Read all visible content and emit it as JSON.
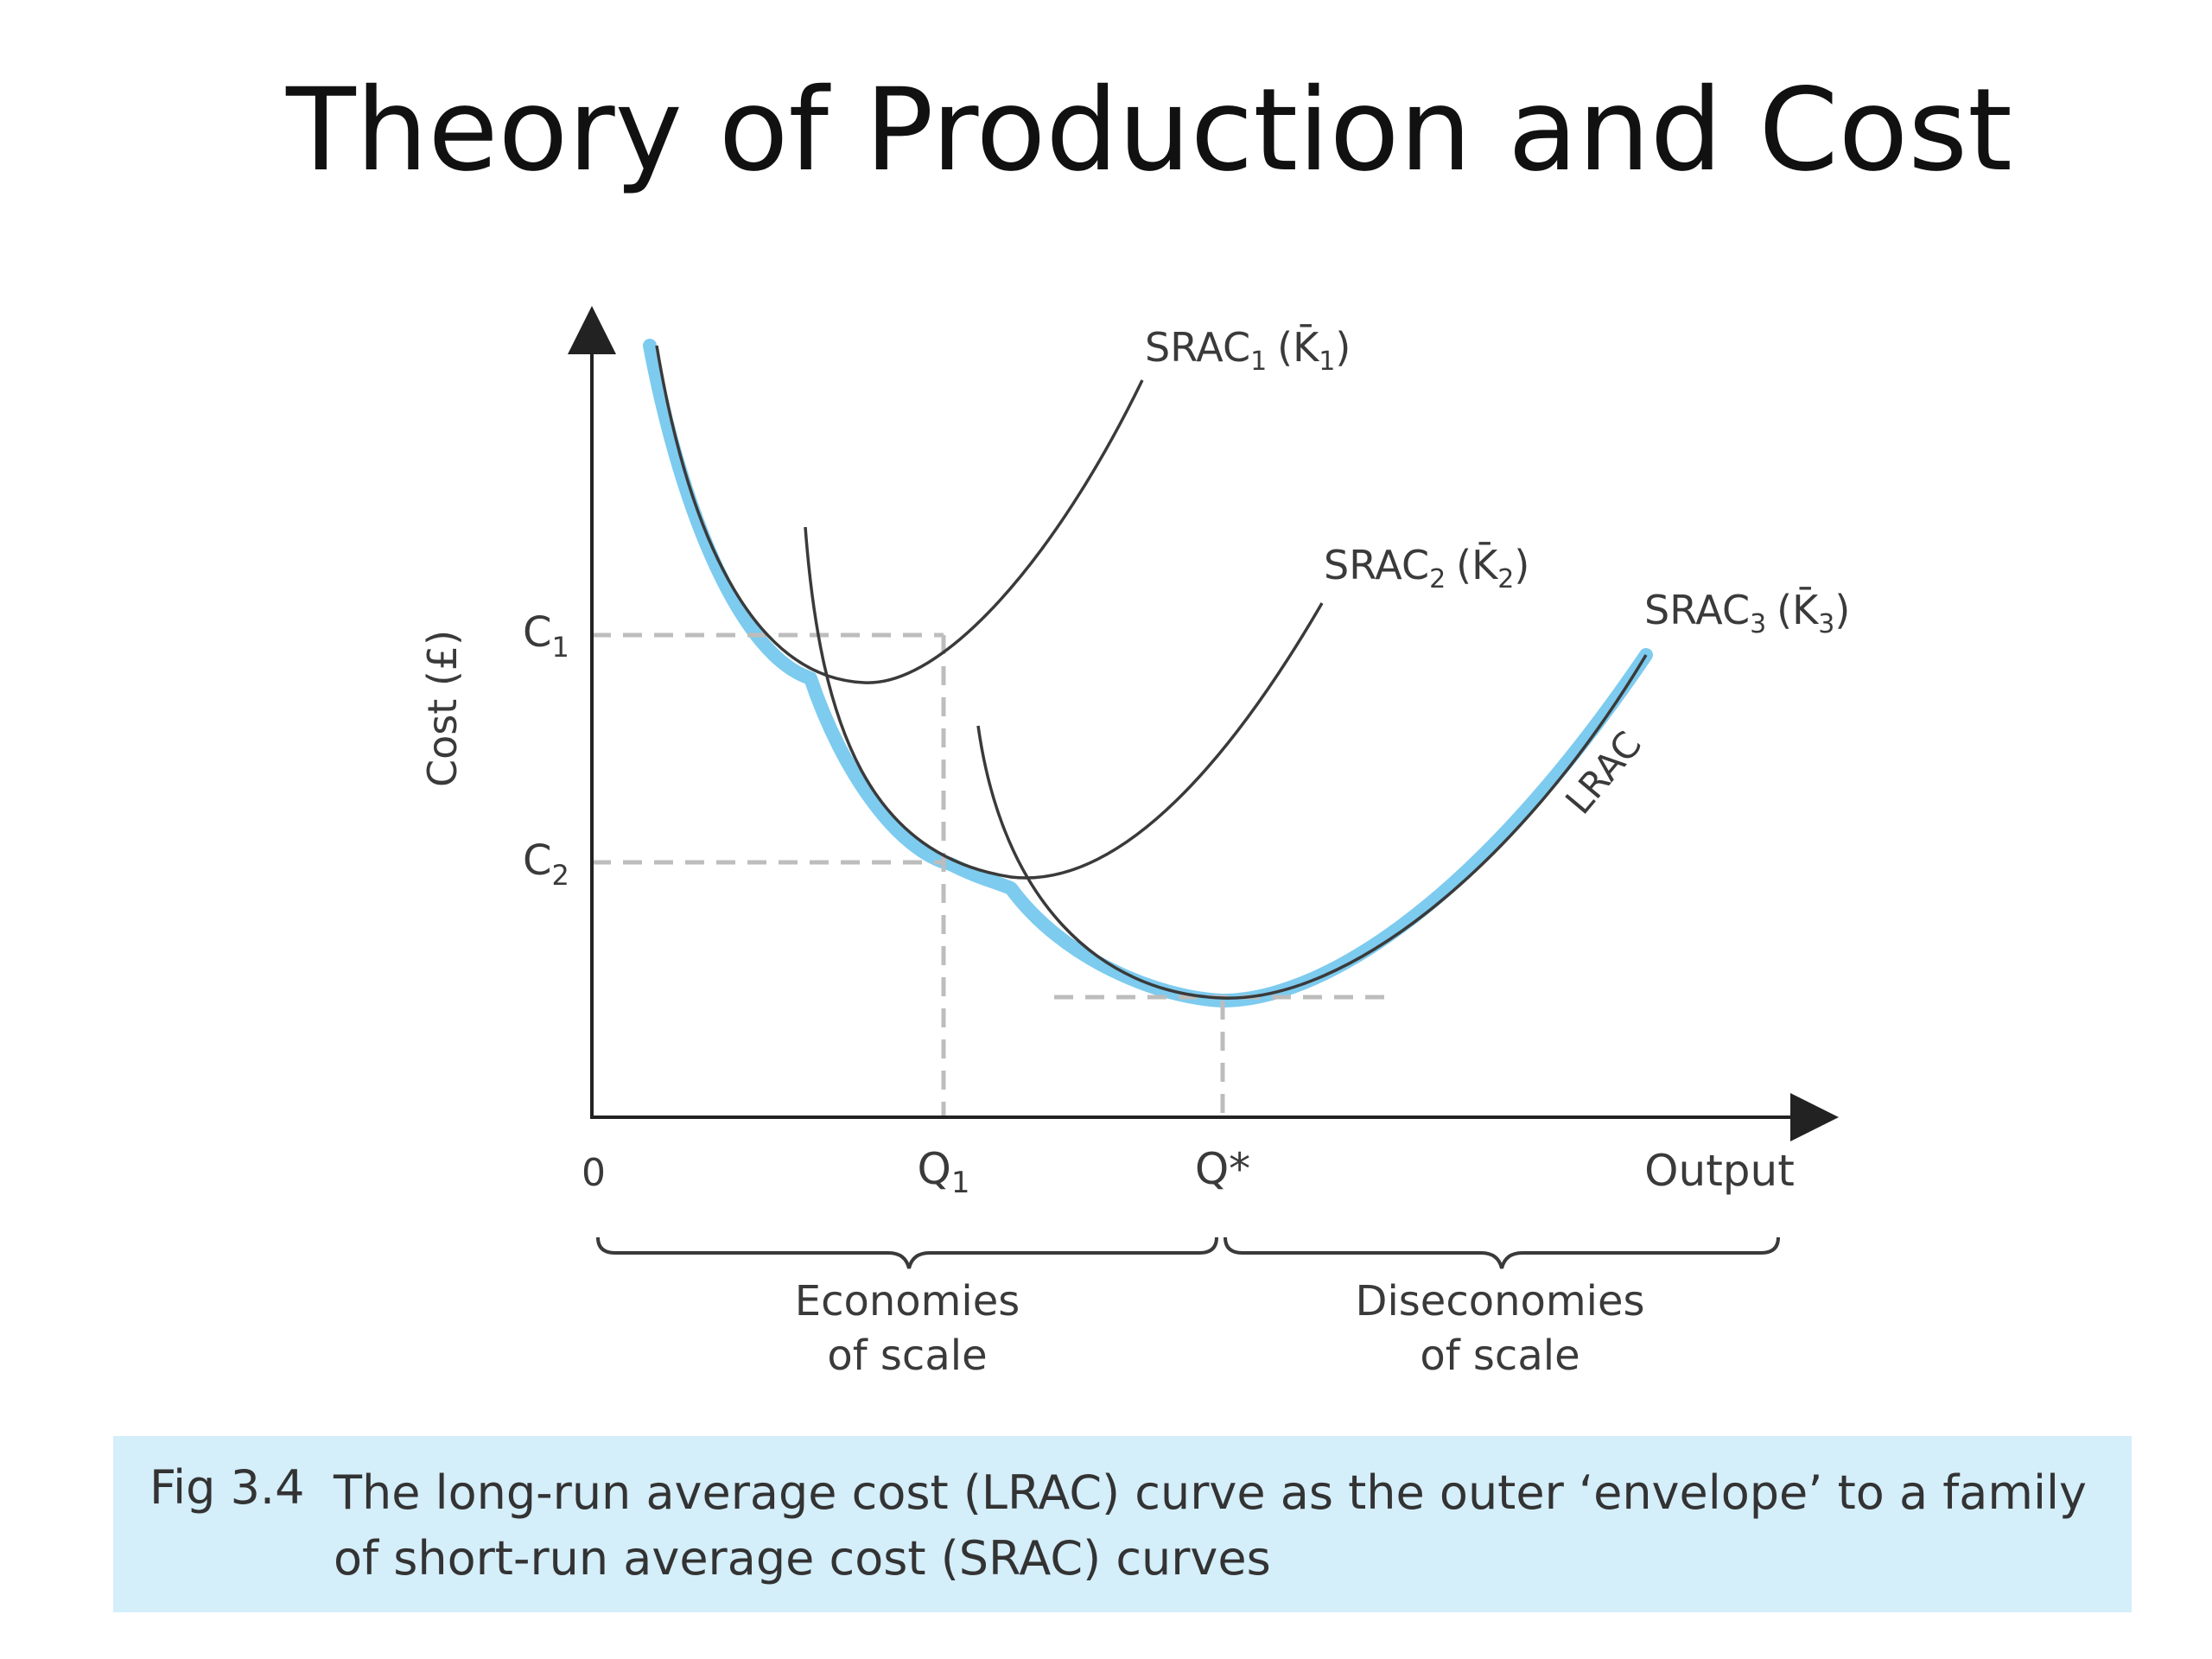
{
  "title": "Theory of Production and Cost",
  "figure": {
    "y_axis_label": "Cost (£)",
    "x_axis_label": "Output",
    "origin_label": "0",
    "y_ticks": [
      {
        "id": "c1",
        "label": "C",
        "sub": "1"
      },
      {
        "id": "c2",
        "label": "C",
        "sub": "2"
      }
    ],
    "x_ticks": [
      {
        "id": "q1",
        "label": "Q",
        "sub": "1"
      },
      {
        "id": "qstar",
        "label": "Q*",
        "sub": ""
      }
    ],
    "curves": [
      {
        "id": "srac1",
        "label": "SRAC",
        "sub": "1",
        "paren": "(K̄",
        "paren_sub": "1",
        "close": ")"
      },
      {
        "id": "srac2",
        "label": "SRAC",
        "sub": "2",
        "paren": "(K̄",
        "paren_sub": "2",
        "close": ")"
      },
      {
        "id": "srac3",
        "label": "SRAC",
        "sub": "3",
        "paren": "(K̄",
        "paren_sub": "3",
        "close": ")"
      },
      {
        "id": "lrac",
        "label": "LRAC"
      }
    ],
    "regions": [
      {
        "id": "economies",
        "line1": "Economies",
        "line2": "of scale"
      },
      {
        "id": "diseconomies",
        "line1": "Diseconomies",
        "line2": "of scale"
      }
    ],
    "colors": {
      "axis": "#222222",
      "curve": "#3a3a3a",
      "lrac": "#7dcbef",
      "guide": "#bdbdbd",
      "caption_bg": "#d4eefa"
    }
  },
  "caption": {
    "fig_number": "Fig 3.4",
    "text": "The long-run average cost (LRAC) curve as the outer ‘envelope’ to a family of short-run average cost (SRAC) curves"
  }
}
